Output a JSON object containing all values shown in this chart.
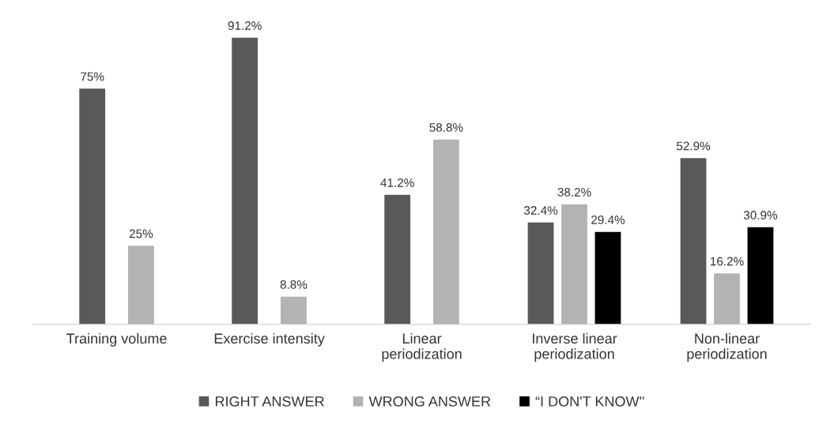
{
  "chart_data": {
    "type": "bar",
    "categories": [
      "Training volume",
      "Exercise intensity",
      "Linear\nperiodization",
      "Inverse linear\nperiodization",
      "Non-linear\nperiodization"
    ],
    "series": [
      {
        "name": "RIGHT ANSWER",
        "color": "#595959",
        "values": [
          75,
          91.2,
          41.2,
          32.4,
          52.9
        ],
        "value_labels": [
          "75%",
          "91.2%",
          "41.2%",
          "32.4%",
          "52.9%"
        ]
      },
      {
        "name": "WRONG ANSWER",
        "color": "#b3b3b3",
        "values": [
          25,
          8.8,
          58.8,
          38.2,
          16.2
        ],
        "value_labels": [
          "25%",
          "8.8%",
          "58.8%",
          "38.2%",
          "16.2%"
        ]
      },
      {
        "name": "“I DON'T KNOW''",
        "color": "#000000",
        "values": [
          null,
          null,
          null,
          29.4,
          30.9
        ],
        "value_labels": [
          null,
          null,
          null,
          "29.4%",
          "30.9%"
        ]
      }
    ],
    "legend": "bottom"
  }
}
